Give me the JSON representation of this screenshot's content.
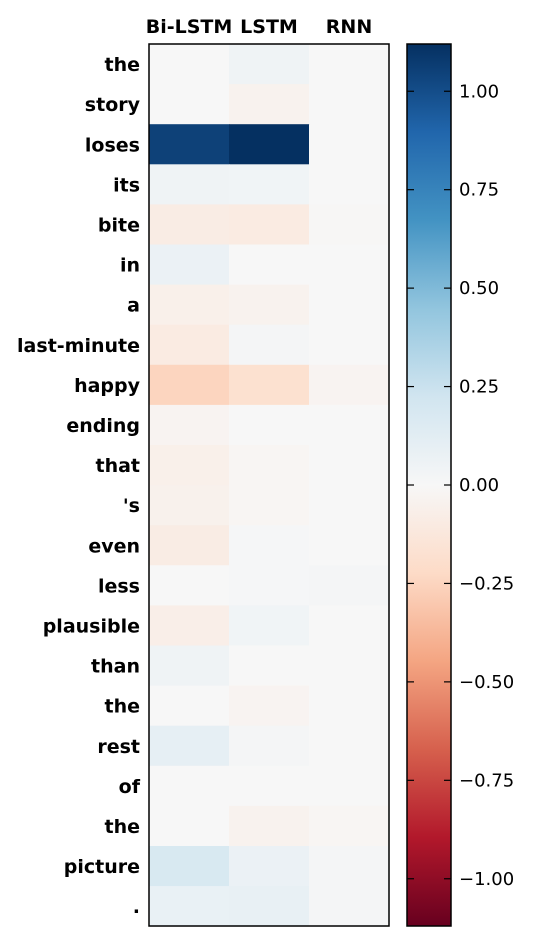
{
  "chart_data": {
    "type": "heatmap",
    "title": "",
    "xlabel": "",
    "ylabel": "",
    "columns": [
      "Bi-LSTM",
      "LSTM",
      "RNN"
    ],
    "rows": [
      "the",
      "story",
      "loses",
      "its",
      "bite",
      "in",
      "a",
      "last-minute",
      "happy",
      "ending",
      "that",
      "'s",
      "even",
      "less",
      "plausible",
      "than",
      "the",
      "rest",
      "of",
      "the",
      "picture",
      "."
    ],
    "values": [
      [
        0.0,
        0.05,
        0.0
      ],
      [
        0.0,
        -0.04,
        0.0
      ],
      [
        1.05,
        1.12,
        0.0
      ],
      [
        0.05,
        0.04,
        0.0
      ],
      [
        -0.09,
        -0.1,
        -0.01
      ],
      [
        0.07,
        0.0,
        0.0
      ],
      [
        -0.06,
        -0.04,
        0.0
      ],
      [
        -0.1,
        0.02,
        0.0
      ],
      [
        -0.25,
        -0.18,
        -0.03
      ],
      [
        -0.03,
        0.0,
        0.0
      ],
      [
        -0.06,
        -0.02,
        0.0
      ],
      [
        -0.05,
        -0.02,
        0.0
      ],
      [
        -0.09,
        0.01,
        0.0
      ],
      [
        0.0,
        0.01,
        0.02
      ],
      [
        -0.07,
        0.04,
        0.0
      ],
      [
        0.05,
        0.0,
        0.0
      ],
      [
        0.0,
        -0.03,
        0.0
      ],
      [
        0.1,
        0.02,
        0.0
      ],
      [
        0.0,
        0.0,
        0.0
      ],
      [
        0.0,
        -0.04,
        -0.02
      ],
      [
        0.18,
        0.07,
        0.02
      ],
      [
        0.08,
        0.09,
        0.02
      ]
    ],
    "colorbar": {
      "colormap": "RdBu",
      "vmin": -1.12,
      "vmax": 1.12,
      "ticks": [
        1.0,
        0.75,
        0.5,
        0.25,
        0.0,
        -0.25,
        -0.5,
        -0.75,
        -1.0
      ],
      "tick_labels": [
        "1.00",
        "0.75",
        "0.50",
        "0.25",
        "0.00",
        "−0.25",
        "−0.50",
        "−0.75",
        "−1.00"
      ]
    }
  }
}
